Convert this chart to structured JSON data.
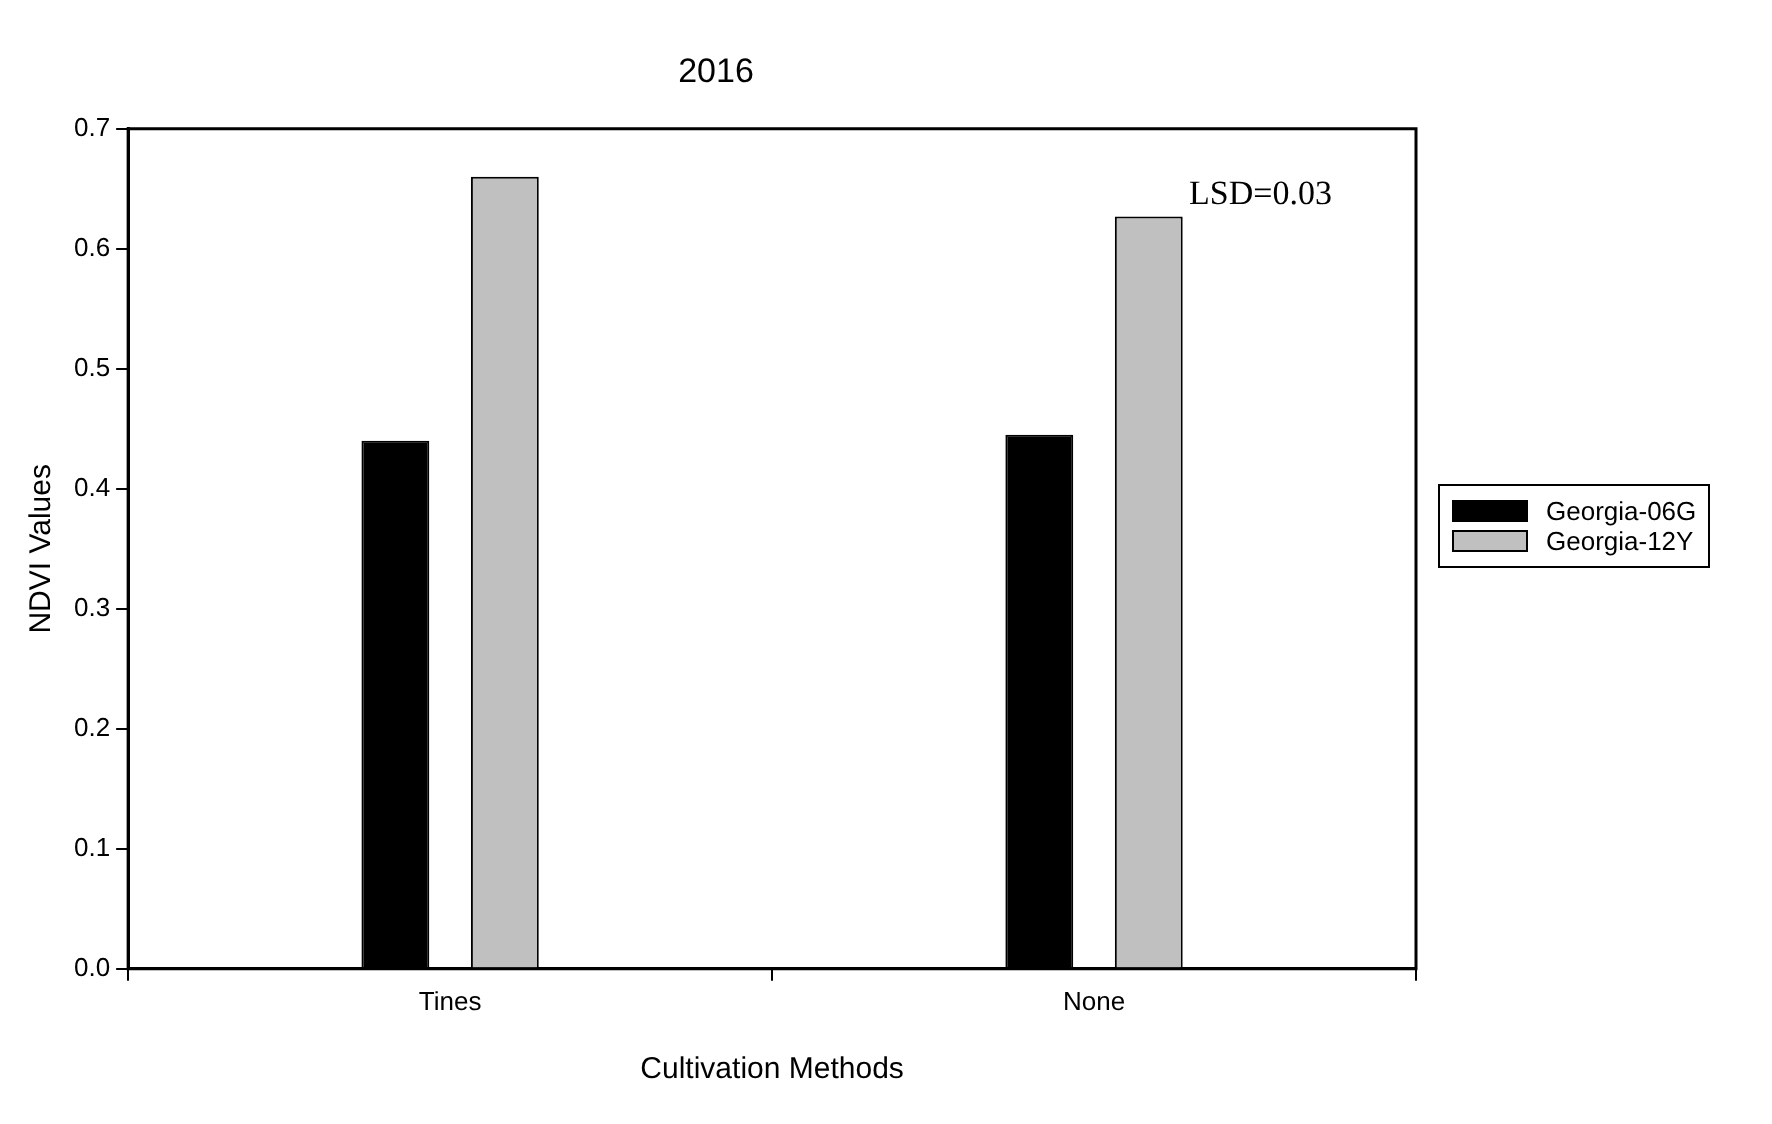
{
  "chart_data": {
    "type": "bar",
    "title": "2016",
    "xlabel": "Cultivation Methods",
    "ylabel": "NDVI Values",
    "categories": [
      "Tines",
      "None"
    ],
    "series": [
      {
        "name": "Georgia-06G",
        "color": "#000000",
        "values": [
          0.44,
          0.445
        ]
      },
      {
        "name": "Georgia-12Y",
        "color": "#c0c0c0",
        "values": [
          0.66,
          0.627
        ]
      }
    ],
    "ylim": [
      0,
      0.7
    ],
    "yticks": [
      {
        "value": 0,
        "label": "0.0"
      },
      0.1,
      0.2,
      0.3,
      0.4,
      0.5,
      0.6,
      0.7
    ],
    "grid": false,
    "legend": "right",
    "annotations": [
      "LSD=0.03"
    ]
  }
}
